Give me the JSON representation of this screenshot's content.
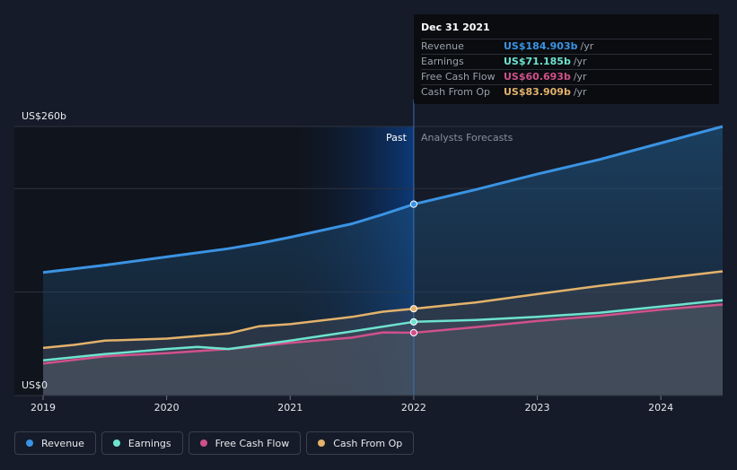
{
  "chart_data": {
    "type": "line",
    "y_axis": {
      "top_label": "US$260b",
      "bottom_label": "US$0",
      "ylim": [
        0,
        260
      ]
    },
    "x_axis": {
      "ticks": [
        "2019",
        "2020",
        "2021",
        "2022",
        "2023",
        "2024"
      ],
      "xlim": [
        2019,
        2024.5
      ]
    },
    "divider_x": 2022,
    "regions": {
      "past": "Past",
      "forecast": "Analysts Forecasts"
    },
    "series": [
      {
        "key": "revenue",
        "name": "Revenue",
        "color": "#3b93e3",
        "points": [
          [
            2019,
            119
          ],
          [
            2019.5,
            126
          ],
          [
            2020,
            134
          ],
          [
            2020.5,
            142
          ],
          [
            2020.75,
            147
          ],
          [
            2021,
            153
          ],
          [
            2021.5,
            166
          ],
          [
            2021.75,
            175
          ],
          [
            2022,
            184.9
          ],
          [
            2022.5,
            199
          ],
          [
            2023,
            214
          ],
          [
            2023.5,
            228
          ],
          [
            2024,
            244
          ],
          [
            2024.5,
            260
          ]
        ]
      },
      {
        "key": "earnings",
        "name": "Earnings",
        "color": "#6ee3cf",
        "points": [
          [
            2019,
            34
          ],
          [
            2019.5,
            40
          ],
          [
            2020,
            45
          ],
          [
            2020.25,
            47
          ],
          [
            2020.5,
            45
          ],
          [
            2021,
            53
          ],
          [
            2021.5,
            62
          ],
          [
            2022,
            71.2
          ],
          [
            2022.5,
            73
          ],
          [
            2023,
            76
          ],
          [
            2023.5,
            80
          ],
          [
            2024,
            86
          ],
          [
            2024.5,
            92
          ]
        ]
      },
      {
        "key": "fcf",
        "name": "Free Cash Flow",
        "color": "#d0518a",
        "points": [
          [
            2019,
            31
          ],
          [
            2019.5,
            38
          ],
          [
            2020,
            41
          ],
          [
            2020.5,
            45
          ],
          [
            2021,
            51
          ],
          [
            2021.5,
            56
          ],
          [
            2021.75,
            61
          ],
          [
            2022,
            60.7
          ],
          [
            2022.5,
            66
          ],
          [
            2023,
            72
          ],
          [
            2023.5,
            77
          ],
          [
            2024,
            83
          ],
          [
            2024.5,
            88
          ]
        ]
      },
      {
        "key": "cfo",
        "name": "Cash From Op",
        "color": "#e3b26b",
        "points": [
          [
            2019,
            46
          ],
          [
            2019.25,
            49
          ],
          [
            2019.5,
            53
          ],
          [
            2020,
            55
          ],
          [
            2020.5,
            60
          ],
          [
            2020.75,
            67
          ],
          [
            2021,
            69
          ],
          [
            2021.5,
            76
          ],
          [
            2021.75,
            81
          ],
          [
            2022,
            83.9
          ],
          [
            2022.5,
            90
          ],
          [
            2023,
            98
          ],
          [
            2023.5,
            106
          ],
          [
            2024,
            113
          ],
          [
            2024.5,
            120
          ]
        ]
      }
    ]
  },
  "tooltip": {
    "date": "Dec 31 2021",
    "rows": [
      {
        "name": "Revenue",
        "value": "US$184.903b",
        "unit": "/yr",
        "color": "#3b93e3"
      },
      {
        "name": "Earnings",
        "value": "US$71.185b",
        "unit": "/yr",
        "color": "#6ee3cf"
      },
      {
        "name": "Free Cash Flow",
        "value": "US$60.693b",
        "unit": "/yr",
        "color": "#d0518a"
      },
      {
        "name": "Cash From Op",
        "value": "US$83.909b",
        "unit": "/yr",
        "color": "#e3b26b"
      }
    ]
  },
  "legend": [
    {
      "name": "Revenue",
      "color": "#3b93e3"
    },
    {
      "name": "Earnings",
      "color": "#6ee3cf"
    },
    {
      "name": "Free Cash Flow",
      "color": "#d0518a"
    },
    {
      "name": "Cash From Op",
      "color": "#e3b26b"
    }
  ]
}
